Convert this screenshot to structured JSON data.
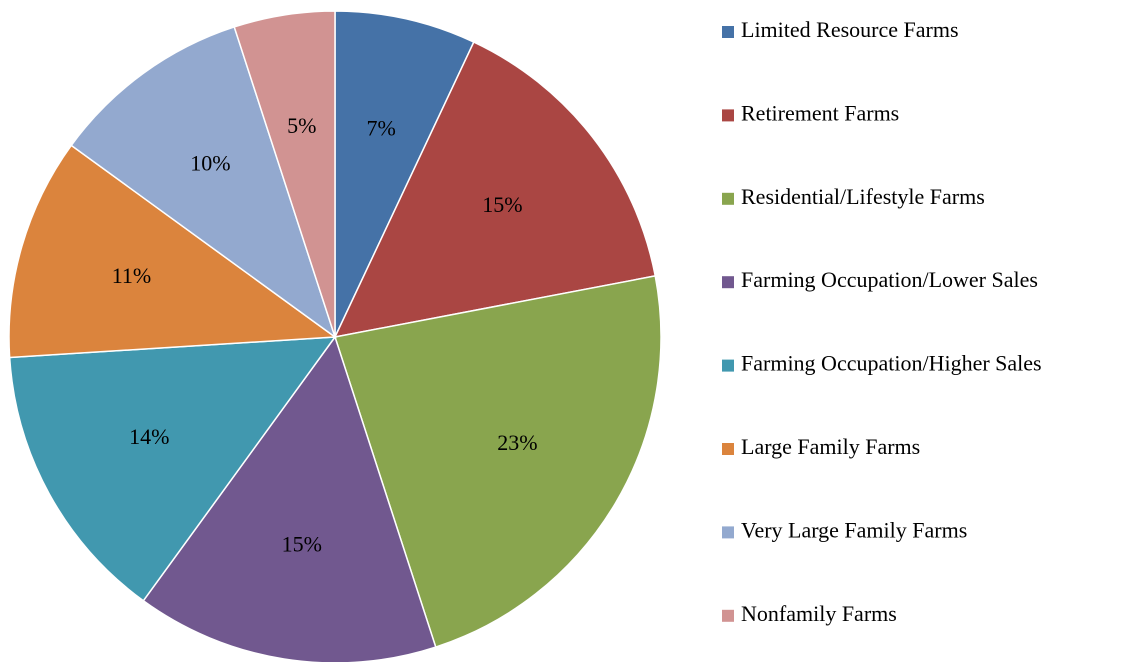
{
  "chart_data": {
    "type": "pie",
    "categories": [
      "Limited Resource Farms",
      "Retirement Farms",
      "Residential/Lifestyle Farms",
      "Farming Occupation/Lower Sales",
      "Farming Occupation/Higher Sales",
      "Large Family Farms",
      "Very Large Family Farms",
      "Nonfamily Farms"
    ],
    "values": [
      7,
      15,
      23,
      15,
      14,
      11,
      10,
      5
    ],
    "value_labels": [
      "7%",
      "15%",
      "23%",
      "15%",
      "14%",
      "11%",
      "10%",
      "5%"
    ],
    "colors": [
      "#4572a7",
      "#aa4643",
      "#89a54e",
      "#71588f",
      "#4198af",
      "#db843d",
      "#93a9cf",
      "#d19392"
    ],
    "legend": "right"
  }
}
